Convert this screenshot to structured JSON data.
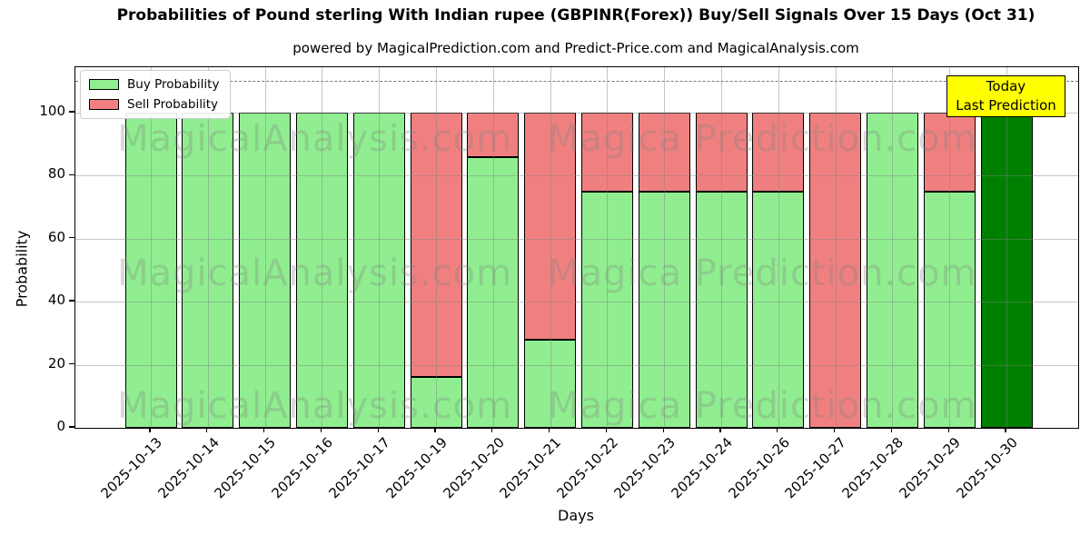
{
  "chart_data": {
    "type": "bar",
    "stacked": true,
    "title": "Probabilities of Pound sterling With Indian rupee (GBPINR(Forex)) Buy/Sell Signals Over 15 Days (Oct 31)",
    "subtitle": "powered by MagicalPrediction.com and Predict-Price.com and MagicalAnalysis.com",
    "xlabel": "Days",
    "ylabel": "Probability",
    "categories": [
      "2025-10-13",
      "2025-10-14",
      "2025-10-15",
      "2025-10-16",
      "2025-10-17",
      "2025-10-19",
      "2025-10-20",
      "2025-10-21",
      "2025-10-22",
      "2025-10-23",
      "2025-10-24",
      "2025-10-26",
      "2025-10-27",
      "2025-10-28",
      "2025-10-29",
      "2025-10-30"
    ],
    "series": [
      {
        "name": "Buy Probability",
        "color": "#90EE90",
        "values": [
          100,
          100,
          100,
          100,
          100,
          16,
          86,
          28,
          75,
          75,
          75,
          75,
          0,
          100,
          75,
          100
        ]
      },
      {
        "name": "Sell Probability",
        "color": "#F08080",
        "values": [
          0,
          0,
          0,
          0,
          0,
          84,
          14,
          72,
          25,
          25,
          25,
          25,
          100,
          0,
          25,
          0
        ]
      }
    ],
    "today_bar": {
      "index": 15,
      "color": "#008000",
      "box_color": "#FFFF00",
      "label_line1": "Today",
      "label_line2": "Last Prediction"
    },
    "yticks": [
      0,
      20,
      40,
      60,
      80,
      100
    ],
    "ylim": [
      0,
      114
    ],
    "dashed_line_y": 110,
    "grid": true,
    "legend_position": "upper left",
    "bar_edge_color": "#000000"
  },
  "watermarks": {
    "left": "MagicalAnalysis.com",
    "right": "Magica Prediction.com"
  }
}
